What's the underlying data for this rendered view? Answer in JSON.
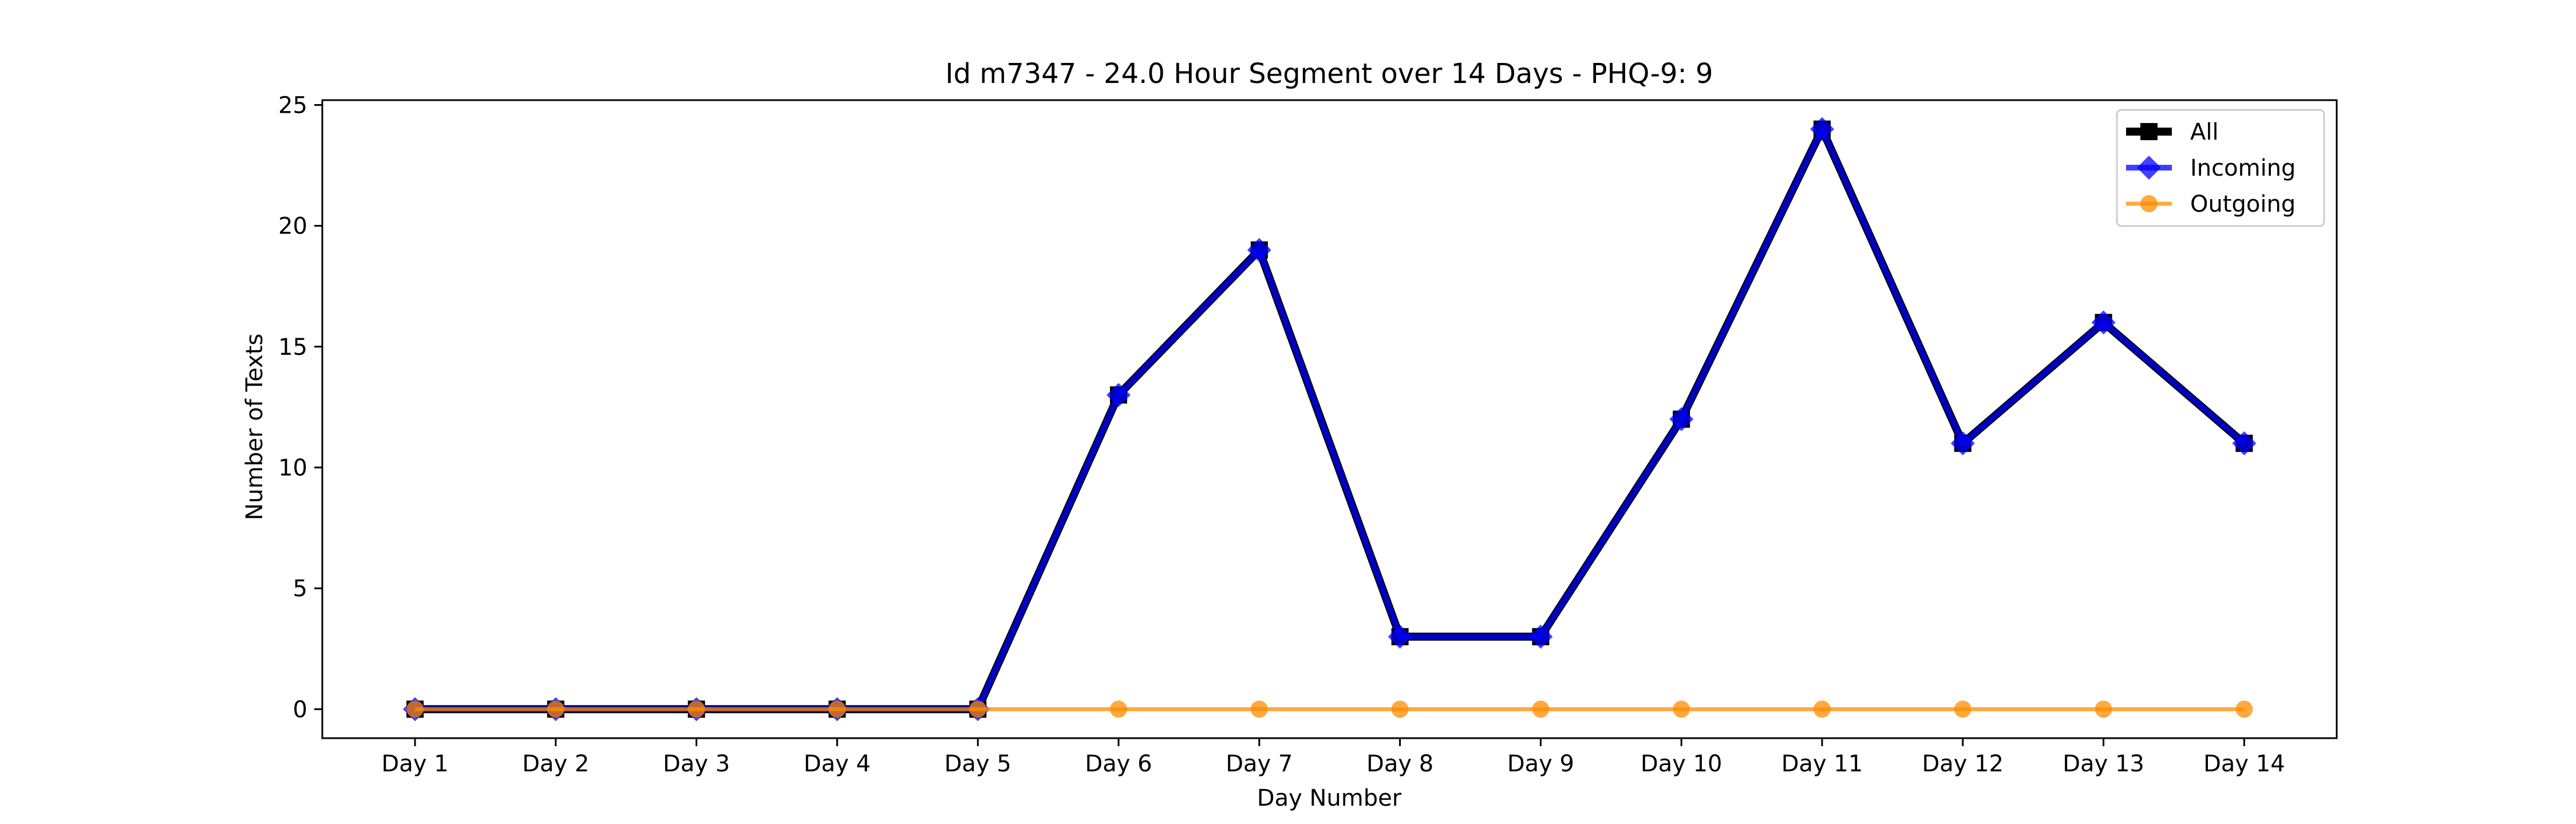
{
  "chart_data": {
    "type": "line",
    "title": "Id m7347 - 24.0 Hour Segment over 14 Days - PHQ-9: 9",
    "xlabel": "Day Number",
    "ylabel": "Number of Texts",
    "categories": [
      "Day 1",
      "Day 2",
      "Day 3",
      "Day 4",
      "Day 5",
      "Day 6",
      "Day 7",
      "Day 8",
      "Day 9",
      "Day 10",
      "Day 11",
      "Day 12",
      "Day 13",
      "Day 14"
    ],
    "yticks": [
      0,
      5,
      10,
      15,
      20,
      25
    ],
    "ylim": [
      -1.2,
      25.2
    ],
    "grid": false,
    "legend_position": "top-right",
    "series": [
      {
        "name": "All",
        "color": "#000000",
        "marker": "square",
        "values": [
          0,
          0,
          0,
          0,
          0,
          13,
          19,
          3,
          3,
          12,
          24,
          11,
          16,
          11
        ]
      },
      {
        "name": "Incoming",
        "color": "#0000ff",
        "marker": "diamond",
        "values": [
          0,
          0,
          0,
          0,
          0,
          13,
          19,
          3,
          3,
          12,
          24,
          11,
          16,
          11
        ]
      },
      {
        "name": "Outgoing",
        "color": "#ff8c00",
        "marker": "circle",
        "values": [
          0,
          0,
          0,
          0,
          0,
          0,
          0,
          0,
          0,
          0,
          0,
          0,
          0,
          0
        ]
      }
    ]
  }
}
